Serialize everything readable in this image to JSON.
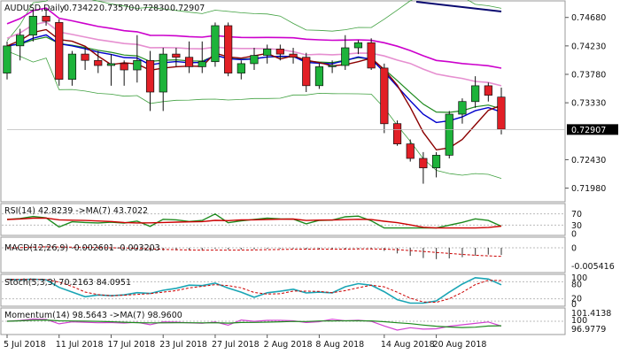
{
  "header": {
    "symbol": "AUDUSD,Daily",
    "open": "0.73422",
    "high": "0.73570",
    "low": "0.72830",
    "close": "0.72907"
  },
  "panels": {
    "rsi_label": "RSI(14) 42.8239 ->MA(7) 43.7022",
    "macd_label": "MACD(12,26,9) -0.002601 -0.003203",
    "stoch_label": "Stoch(5,3,3) 70.2163 84.0951",
    "mom_label": "Momentum(14) 98.5643 ->MA(7) 98.9600"
  },
  "axes": {
    "price_ticks": [
      "0.74680",
      "0.74230",
      "0.73780",
      "0.73330",
      "0.72430",
      "0.71980"
    ],
    "price_current": "0.72907",
    "rsi_ticks": [
      "70",
      "30",
      "0"
    ],
    "macd_ticks": [
      "0",
      "-0.005416"
    ],
    "stoch_ticks": [
      "100",
      "80",
      "20",
      "0"
    ],
    "mom_ticks": [
      "101.4138",
      "100",
      "96.9779"
    ],
    "x_ticks": [
      "5 Jul 2018",
      "11 Jul 2018",
      "17 Jul 2018",
      "23 Jul 2018",
      "27 Jul 2018",
      "2 Aug 2018",
      "8 Aug 2018",
      "14 Aug 2018",
      "20 Aug 2018"
    ]
  },
  "colors": {
    "up": "#1db33a",
    "down": "#e21f26",
    "sma_fast": "#8b0000",
    "sma_mid": "#1e8a1e",
    "ema_blue": "#0000cc",
    "sma_pink": "#e68fd0",
    "sma_magenta": "#cc00cc",
    "sma_navy": "#0a0a70",
    "bollinger": "#3fa03f"
  },
  "chart_data": {
    "type": "candlestick",
    "symbol": "AUDUSD",
    "timeframe": "Daily",
    "ylim": [
      0.7182,
      0.749
    ],
    "candles": [
      [
        0.738,
        0.743,
        0.737,
        0.7423
      ],
      [
        0.7423,
        0.745,
        0.74,
        0.744
      ],
      [
        0.744,
        0.748,
        0.743,
        0.747
      ],
      [
        0.747,
        0.7482,
        0.7455,
        0.7462
      ],
      [
        0.746,
        0.7465,
        0.736,
        0.737
      ],
      [
        0.737,
        0.7415,
        0.736,
        0.741
      ],
      [
        0.741,
        0.742,
        0.7385,
        0.74
      ],
      [
        0.74,
        0.7415,
        0.738,
        0.7392
      ],
      [
        0.7392,
        0.741,
        0.736,
        0.7395
      ],
      [
        0.7395,
        0.74,
        0.736,
        0.7385
      ],
      [
        0.7385,
        0.744,
        0.7365,
        0.74
      ],
      [
        0.74,
        0.7415,
        0.732,
        0.735
      ],
      [
        0.735,
        0.742,
        0.732,
        0.741
      ],
      [
        0.741,
        0.742,
        0.739,
        0.7405
      ],
      [
        0.7405,
        0.743,
        0.738,
        0.739
      ],
      [
        0.739,
        0.743,
        0.738,
        0.7398
      ],
      [
        0.7398,
        0.746,
        0.739,
        0.7455
      ],
      [
        0.7455,
        0.746,
        0.7375,
        0.738
      ],
      [
        0.738,
        0.74,
        0.737,
        0.7395
      ],
      [
        0.7395,
        0.742,
        0.7385,
        0.7408
      ],
      [
        0.7408,
        0.7425,
        0.7395,
        0.7418
      ],
      [
        0.7418,
        0.7425,
        0.74,
        0.741
      ],
      [
        0.741,
        0.742,
        0.7395,
        0.7405
      ],
      [
        0.7405,
        0.7412,
        0.735,
        0.736
      ],
      [
        0.736,
        0.7395,
        0.7355,
        0.739
      ],
      [
        0.739,
        0.74,
        0.738,
        0.7392
      ],
      [
        0.7392,
        0.744,
        0.7385,
        0.742
      ],
      [
        0.742,
        0.7432,
        0.741,
        0.7428
      ],
      [
        0.7428,
        0.7435,
        0.7385,
        0.7388
      ],
      [
        0.7388,
        0.7395,
        0.7285,
        0.73
      ],
      [
        0.73,
        0.7305,
        0.7265,
        0.7268
      ],
      [
        0.7268,
        0.7275,
        0.724,
        0.7245
      ],
      [
        0.7245,
        0.7255,
        0.7205,
        0.723
      ],
      [
        0.723,
        0.7255,
        0.7215,
        0.725
      ],
      [
        0.725,
        0.732,
        0.7245,
        0.7315
      ],
      [
        0.7315,
        0.734,
        0.73,
        0.7335
      ],
      [
        0.7335,
        0.7375,
        0.7325,
        0.736
      ],
      [
        0.736,
        0.7365,
        0.7335,
        0.7345
      ],
      [
        0.7342,
        0.7357,
        0.7283,
        0.7291
      ]
    ],
    "current_price": 0.72907,
    "x_tick_labels": [
      "5 Jul 2018",
      "11 Jul 2018",
      "17 Jul 2018",
      "23 Jul 2018",
      "27 Jul 2018",
      "2 Aug 2018",
      "8 Aug 2018",
      "14 Aug 2018",
      "20 Aug 2018"
    ],
    "x_tick_candle_index": [
      0,
      4,
      8,
      12,
      16,
      20,
      24,
      29,
      33
    ],
    "indicators": {
      "rsi": {
        "value": 42.8239,
        "ma7": 43.7022,
        "levels": [
          70,
          30
        ]
      },
      "macd": {
        "params": "12,26,9",
        "macd": -0.002601,
        "signal": -0.003203
      },
      "stoch": {
        "params": "5,3,3",
        "k": 70.2163,
        "d": 84.0951,
        "levels": [
          80,
          20
        ]
      },
      "momentum": {
        "period": 14,
        "value": 98.5643,
        "ma7": 98.96
      }
    }
  }
}
